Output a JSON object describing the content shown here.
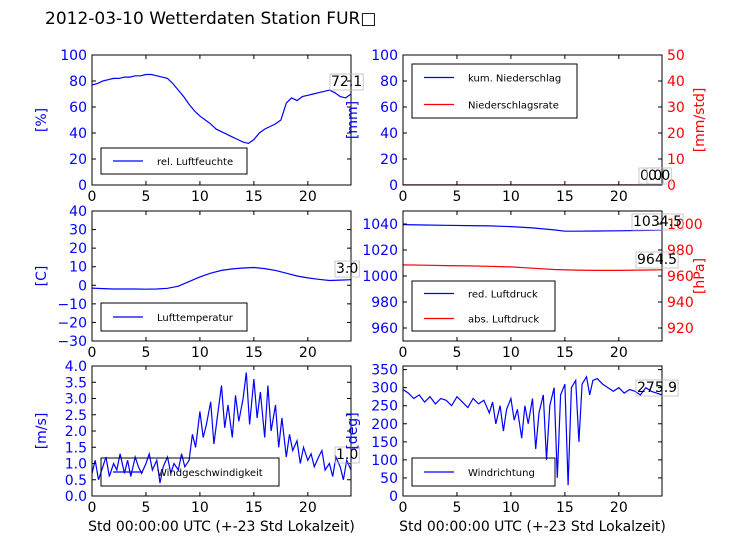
{
  "figure": {
    "title": "2012-03-10 Wetterdaten Station FUR□",
    "xlabel": "Std 00:00:00 UTC (+-23 Std Lokalzeit)"
  },
  "colors": {
    "blue": "#0000ff",
    "red": "#ff0000",
    "light_blue": "#8080ff"
  },
  "chart_data": [
    {
      "id": "humidity",
      "type": "line",
      "xlim": [
        0,
        24
      ],
      "ylim": [
        0,
        100
      ],
      "xticks": [
        "0",
        "5",
        "10",
        "15",
        "20"
      ],
      "yticks": [
        "0",
        "20",
        "40",
        "60",
        "80",
        "100"
      ],
      "ylabel": "[%]",
      "legend": {
        "position": "lower-left",
        "entries": [
          "rel. Luftfeuchte"
        ]
      },
      "annotations": [
        "72.1"
      ],
      "series": [
        {
          "name": "rel. Luftfeuchte",
          "color": "#0000ff",
          "x": [
            0,
            0.5,
            1,
            1.5,
            2,
            2.5,
            3,
            3.5,
            4,
            4.5,
            5,
            5.5,
            6,
            6.5,
            7,
            7.5,
            8,
            8.5,
            9,
            9.5,
            10,
            10.5,
            11,
            11.5,
            12,
            12.5,
            13,
            13.5,
            14,
            14.5,
            15,
            15.5,
            16,
            16.5,
            17,
            17.5,
            18,
            18.5,
            19,
            19.5,
            20,
            20.5,
            21,
            21.5,
            22,
            22.5,
            23,
            23.5,
            24
          ],
          "y": [
            77,
            78,
            80,
            81,
            82,
            82,
            83,
            83,
            84,
            84,
            85,
            85,
            84,
            83,
            82,
            78,
            73,
            68,
            62,
            57,
            53,
            50,
            47,
            43,
            41,
            39,
            37,
            35,
            33,
            32,
            35,
            40,
            43,
            45,
            47,
            50,
            63,
            67,
            65,
            68,
            69,
            70,
            71,
            72,
            73,
            71,
            68,
            67,
            70
          ]
        }
      ]
    },
    {
      "id": "precipitation",
      "type": "line",
      "xlim": [
        0,
        24
      ],
      "ylim": [
        0,
        100
      ],
      "y2lim": [
        0,
        50
      ],
      "xticks": [
        "0",
        "5",
        "10",
        "15",
        "20"
      ],
      "yticks": [
        "0",
        "20",
        "40",
        "60",
        "80",
        "100"
      ],
      "y2ticks": [
        "0",
        "10",
        "20",
        "30",
        "40",
        "50"
      ],
      "ylabel": "[mm]",
      "y2label": "[mm/std]",
      "legend": {
        "position": "upper-left",
        "entries": [
          "kum. Niederschlag",
          "Niederschlagsrate"
        ]
      },
      "annotations": [
        "0.0",
        "0.0"
      ],
      "series": [
        {
          "name": "kum. Niederschlag",
          "color": "#0000ff",
          "axis": "left",
          "x": [
            0,
            24
          ],
          "y": [
            0,
            0
          ]
        },
        {
          "name": "Niederschlagsrate",
          "color": "#ff0000",
          "axis": "right",
          "x": [
            0,
            24
          ],
          "y": [
            0,
            0
          ]
        }
      ]
    },
    {
      "id": "temperature",
      "type": "line",
      "xlim": [
        0,
        24
      ],
      "ylim": [
        -30,
        40
      ],
      "xticks": [
        "0",
        "5",
        "10",
        "15",
        "20"
      ],
      "yticks": [
        "−30",
        "−20",
        "−10",
        "0",
        "10",
        "20",
        "30",
        "40"
      ],
      "ylabel": "[C]",
      "legend": {
        "position": "lower-left",
        "entries": [
          "Lufttemperatur"
        ]
      },
      "annotations": [
        "3.0"
      ],
      "series": [
        {
          "name": "Lufttemperatur",
          "color": "#0000ff",
          "x": [
            0,
            1,
            2,
            3,
            4,
            5,
            6,
            7,
            8,
            9,
            10,
            11,
            12,
            13,
            14,
            15,
            16,
            17,
            18,
            19,
            20,
            21,
            22,
            23,
            24
          ],
          "y": [
            -1.5,
            -1.8,
            -2,
            -2,
            -2,
            -2.1,
            -2,
            -1.6,
            -0.5,
            2,
            4.5,
            6.5,
            8,
            8.8,
            9.3,
            9.6,
            9,
            8,
            6.5,
            5,
            4,
            3.2,
            2.6,
            2.8,
            3
          ]
        }
      ]
    },
    {
      "id": "pressure",
      "type": "line",
      "xlim": [
        0,
        24
      ],
      "ylim": [
        950,
        1050
      ],
      "y2lim": [
        910,
        1010
      ],
      "xticks": [
        "0",
        "5",
        "10",
        "15",
        "20"
      ],
      "yticks": [
        "960",
        "980",
        "1000",
        "1020",
        "1040"
      ],
      "y2ticks": [
        "920",
        "940",
        "960",
        "980",
        "1000"
      ],
      "y2label": "[hPa]",
      "legend": {
        "position": "lower-left",
        "entries": [
          "red. Luftdruck",
          "abs. Luftdruck"
        ]
      },
      "annotations": [
        "1034.5",
        "964.5"
      ],
      "series": [
        {
          "name": "red. Luftdruck",
          "color": "#0000ff",
          "axis": "left",
          "x": [
            0,
            2,
            4,
            6,
            8,
            10,
            12,
            14,
            15,
            16,
            18,
            20,
            22,
            24
          ],
          "y": [
            1039.5,
            1039.2,
            1039,
            1038.8,
            1038.5,
            1038,
            1037,
            1035.5,
            1034.5,
            1034.5,
            1034.6,
            1034.8,
            1035,
            1035.2
          ]
        },
        {
          "name": "abs. Luftdruck",
          "color": "#ff0000",
          "axis": "left",
          "x": [
            0,
            2,
            4,
            6,
            8,
            10,
            12,
            14,
            16,
            18,
            20,
            22,
            24
          ],
          "y": [
            1008.5,
            1008.3,
            1008,
            1007.8,
            1007.5,
            1007,
            1006,
            1005,
            1004.5,
            1004.3,
            1004.3,
            1004.5,
            1004.8
          ]
        }
      ]
    },
    {
      "id": "windspeed",
      "type": "line",
      "xlim": [
        0,
        24
      ],
      "ylim": [
        0,
        4
      ],
      "xticks": [
        "0",
        "5",
        "10",
        "15",
        "20"
      ],
      "yticks": [
        "0.0",
        "0.5",
        "1.0",
        "1.5",
        "2.0",
        "2.5",
        "3.0",
        "3.5",
        "4.0"
      ],
      "ylabel": "[m/s]",
      "xlabel": "Std 00:00:00 UTC (+-23 Std Lokalzeit)",
      "legend": {
        "position": "lower-left",
        "entries": [
          "Windgeschwindigkeit"
        ]
      },
      "annotations": [
        "1.0"
      ],
      "series": [
        {
          "name": "Windgeschwindigkeit",
          "color": "#0000ff",
          "x": [
            0,
            0.3,
            0.6,
            1,
            1.3,
            1.6,
            2,
            2.3,
            2.6,
            3,
            3.3,
            3.6,
            4,
            4.3,
            4.6,
            5,
            5.3,
            5.6,
            6,
            6.3,
            6.6,
            7,
            7.3,
            7.6,
            8,
            8.3,
            8.6,
            9,
            9.3,
            9.6,
            10,
            10.3,
            10.6,
            11,
            11.3,
            11.6,
            12,
            12.3,
            12.6,
            13,
            13.3,
            13.6,
            14,
            14.3,
            14.6,
            15,
            15.3,
            15.6,
            16,
            16.3,
            16.6,
            17,
            17.3,
            17.6,
            18,
            18.3,
            18.6,
            19,
            19.3,
            19.6,
            20,
            20.3,
            20.6,
            21,
            21.3,
            21.6,
            22,
            22.3,
            22.6,
            23,
            23.3,
            23.6,
            24
          ],
          "y": [
            0.7,
            1.1,
            0.5,
            0.9,
            1.2,
            0.6,
            1.0,
            0.8,
            1.3,
            0.7,
            1.1,
            0.6,
            1.2,
            0.9,
            0.7,
            1.0,
            1.3,
            0.8,
            1.1,
            0.4,
            0.9,
            1.2,
            0.7,
            1.0,
            0.8,
            1.3,
            0.9,
            1.1,
            1.9,
            1.5,
            2.6,
            1.8,
            2.2,
            2.9,
            1.6,
            2.4,
            3.4,
            2.1,
            2.8,
            1.8,
            3.1,
            2.3,
            3.0,
            3.8,
            2.2,
            3.6,
            2.4,
            3.2,
            1.8,
            3.4,
            2.0,
            2.8,
            1.5,
            2.4,
            1.2,
            1.9,
            1.4,
            1.7,
            1.0,
            1.5,
            1.1,
            1.3,
            0.9,
            1.2,
            1.4,
            0.8,
            1.0,
            0.6,
            1.2,
            0.9,
            0.5,
            1.1,
            0.8
          ]
        }
      ]
    },
    {
      "id": "winddir",
      "type": "line",
      "xlim": [
        0,
        24
      ],
      "ylim": [
        0,
        360
      ],
      "xticks": [
        "0",
        "5",
        "10",
        "15",
        "20"
      ],
      "yticks": [
        "0",
        "50",
        "100",
        "150",
        "200",
        "250",
        "300",
        "350"
      ],
      "ylabel": "[deg]",
      "xlabel": "Std 00:00:00 UTC (+-23 Std Lokalzeit)",
      "legend": {
        "position": "lower-left",
        "entries": [
          "Windrichtung"
        ]
      },
      "annotations": [
        "275.9"
      ],
      "series": [
        {
          "name": "Windrichtung",
          "color": "#0000ff",
          "x": [
            0,
            0.5,
            1,
            1.5,
            2,
            2.5,
            3,
            3.5,
            4,
            4.5,
            5,
            5.5,
            6,
            6.5,
            7,
            7.5,
            8,
            8.3,
            8.6,
            9,
            9.3,
            9.6,
            10,
            10.3,
            10.6,
            11,
            11.3,
            11.6,
            12,
            12.3,
            12.6,
            13,
            13.3,
            13.6,
            14,
            14.3,
            14.6,
            15,
            15.3,
            15.6,
            16,
            16.3,
            16.6,
            17,
            17.3,
            17.6,
            18,
            18.5,
            19,
            19.5,
            20,
            20.5,
            21,
            21.5,
            22,
            22.5,
            23,
            23.5,
            24
          ],
          "y": [
            295,
            285,
            270,
            280,
            260,
            275,
            255,
            270,
            265,
            250,
            275,
            260,
            245,
            270,
            255,
            265,
            230,
            260,
            200,
            250,
            180,
            240,
            270,
            210,
            240,
            160,
            250,
            200,
            270,
            130,
            230,
            280,
            100,
            250,
            300,
            50,
            280,
            310,
            30,
            300,
            320,
            150,
            310,
            330,
            280,
            320,
            325,
            310,
            300,
            290,
            300,
            285,
            295,
            290,
            280,
            300,
            290,
            285,
            280
          ]
        }
      ]
    }
  ]
}
